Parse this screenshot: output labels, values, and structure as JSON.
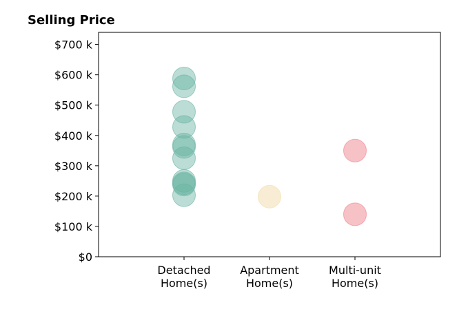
{
  "chart_data": {
    "type": "scatter",
    "title": "Selling Price",
    "xlabel": "",
    "ylabel": "",
    "categories": [
      [
        "Detached",
        "Home(s)"
      ],
      [
        "Apartment",
        "Home(s)"
      ],
      [
        "Multi-unit",
        "Home(s)"
      ]
    ],
    "xlim": [
      -1,
      3
    ],
    "ylim": [
      0,
      740000
    ],
    "y_ticks": [
      0,
      100000,
      200000,
      300000,
      400000,
      500000,
      600000,
      700000
    ],
    "y_tick_labels": [
      "$0",
      "$100 k",
      "$200 k",
      "$300 k",
      "$400 k",
      "$500 k",
      "$600 k",
      "$700 k"
    ],
    "grid": false,
    "legend": "none",
    "series": [
      {
        "category_index": 0,
        "color": "#69b3a2",
        "alpha": 0.45,
        "values": [
          588000,
          562000,
          478000,
          428000,
          370000,
          362000,
          325000,
          250000,
          242000,
          238000,
          203000
        ]
      },
      {
        "category_index": 1,
        "color": "#f3dfb0",
        "alpha": 0.55,
        "values": [
          198000
        ]
      },
      {
        "category_index": 2,
        "color": "#f08f98",
        "alpha": 0.55,
        "values": [
          350000,
          140000
        ]
      }
    ]
  }
}
